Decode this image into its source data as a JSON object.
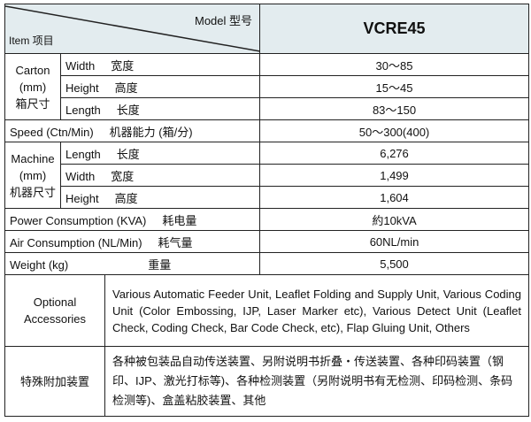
{
  "header": {
    "model_label": "Model 型号",
    "item_label": "Item 项目",
    "model_name": "VCRE45"
  },
  "carton": {
    "group": "Carton",
    "unit": "(mm)",
    "group_zh": "箱尺寸",
    "rows": [
      {
        "en": "Width",
        "zh": "宽度",
        "value": "30～85"
      },
      {
        "en": "Height",
        "zh": "高度",
        "value": "15～45"
      },
      {
        "en": "Length",
        "zh": "长度",
        "value": "83～150"
      }
    ]
  },
  "speed": {
    "en": "Speed (Ctn/Min)",
    "zh": "机器能力 (箱/分)",
    "value": "50～300(400)"
  },
  "machine": {
    "group": "Machine",
    "unit": "(mm)",
    "group_zh": "机器尺寸",
    "rows": [
      {
        "en": "Length",
        "zh": "长度",
        "value": "6,276"
      },
      {
        "en": "Width",
        "zh": "宽度",
        "value": "1,499"
      },
      {
        "en": "Height",
        "zh": "高度",
        "value": "1,604"
      }
    ]
  },
  "power": {
    "en": "Power Consumption (KVA)",
    "zh": "耗电量",
    "value": "約10kVA"
  },
  "air": {
    "en": "Air Consumption (NL/Min)",
    "zh": "耗气量",
    "value": "60NL/min"
  },
  "weight": {
    "en": "Weight (kg)",
    "zh": "重量",
    "value": "5,500"
  },
  "optional": {
    "label_line1": "Optional",
    "label_line2": "Accessories",
    "text": "Various Automatic Feeder Unit, Leaflet Folding and Supply Unit, Various Coding Unit (Color Embossing, IJP, Laser Marker etc), Various Detect Unit (Leaflet Check, Coding Check, Bar Code Check, etc), Flap Gluing Unit, Others"
  },
  "optional_zh": {
    "label": "特殊附加装置",
    "text": "各种被包装品自动传送装置、另附说明书折叠・传送装置、各种印码装置（钢印、IJP、激光打标等)、各种检测装置（另附说明书有无检测、印码检测、条码检测等)、盒盖粘胶装置、其他"
  }
}
